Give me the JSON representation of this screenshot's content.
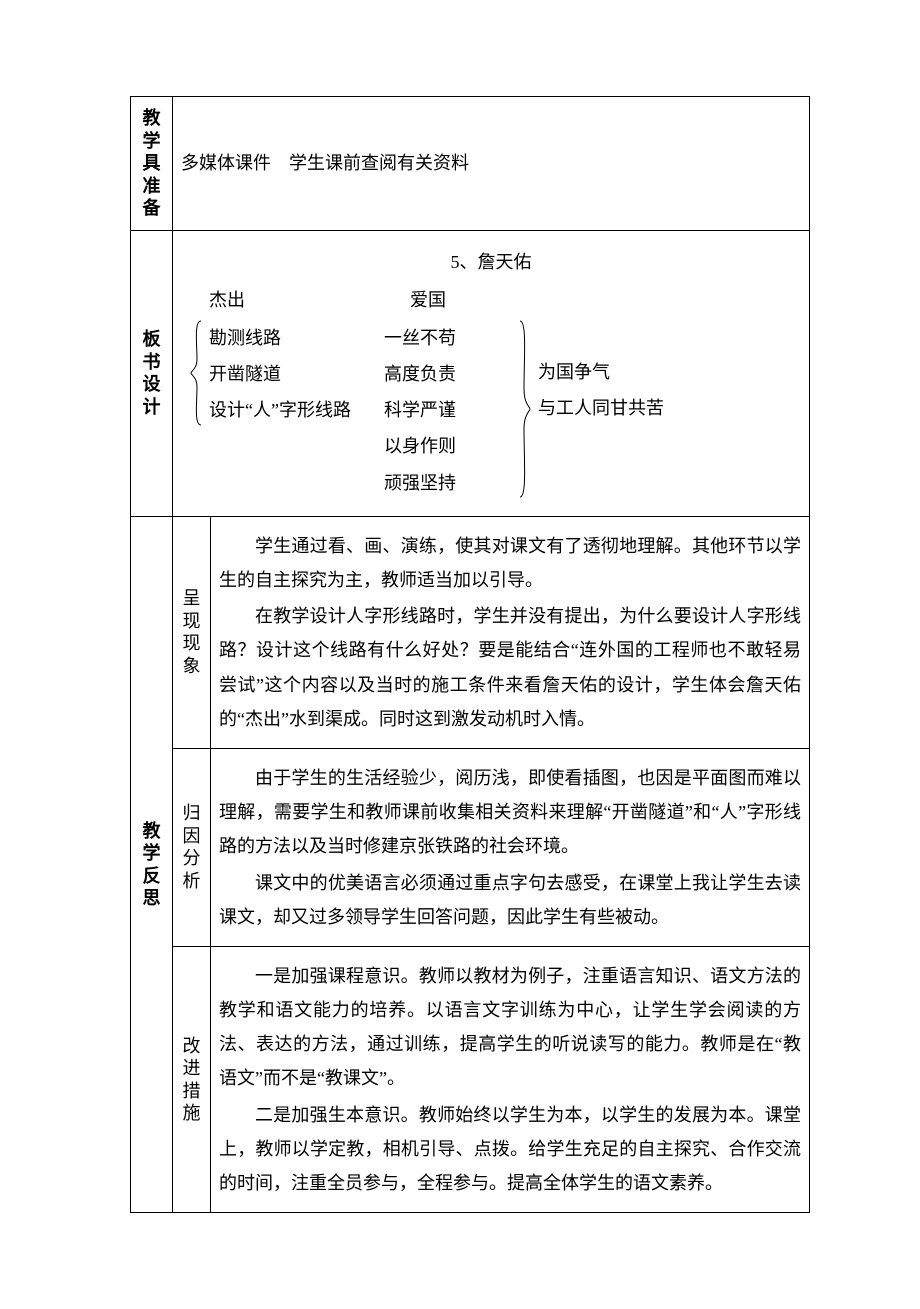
{
  "colors": {
    "border": "#000000",
    "text": "#000000",
    "bg": "#ffffff"
  },
  "font": {
    "family": "SimSun",
    "size_pt": 14,
    "line_height": 1.9
  },
  "row1": {
    "label": "教学具准备",
    "content": "多媒体课件　学生课前查阅有关资料"
  },
  "board": {
    "label": "板书设计",
    "title": "5、詹天佑",
    "head_left": "杰出",
    "head_right": "爱国",
    "col_a": [
      "勘测线路",
      "开凿隧道",
      "设计“人”字形线路"
    ],
    "col_b": [
      "一丝不苟",
      "高度负责",
      "科学严谨",
      "以身作则",
      "顽强坚持"
    ],
    "col_c": [
      "为国争气",
      "与工人同甘共苦"
    ]
  },
  "reflect": {
    "label": "教学反思",
    "sections": [
      {
        "sub": "呈现现象",
        "paras": [
          "学生通过看、画、演练，使其对课文有了透彻地理解。其他环节以学生的自主探究为主，教师适当加以引导。",
          "在教学设计人字形线路时，学生并没有提出，为什么要设计人字形线路？设计这个线路有什么好处？要是能结合“连外国的工程师也不敢轻易尝试”这个内容以及当时的施工条件来看詹天佑的设计，学生体会詹天佑的“杰出”水到渠成。同时这到激发动机时入情。"
        ]
      },
      {
        "sub": "归因分析",
        "paras": [
          "由于学生的生活经验少，阅历浅，即使看插图，也因是平面图而难以理解，需要学生和教师课前收集相关资料来理解“开凿隧道”和“人”字形线路的方法以及当时修建京张铁路的社会环境。",
          "课文中的优美语言必须通过重点字句去感受，在课堂上我让学生去读课文，却又过多领导学生回答问题，因此学生有些被动。"
        ]
      },
      {
        "sub": "改进措施",
        "paras": [
          "一是加强课程意识。教师以教材为例子，注重语言知识、语文方法的教学和语文能力的培养。以语言文字训练为中心，让学生学会阅读的方法、表达的方法，通过训练，提高学生的听说读写的能力。教师是在“教语文”而不是“教课文”。",
          "二是加强生本意识。教师始终以学生为本，以学生的发展为本。课堂上，教师以学定教，相机引导、点拨。给学生充足的自主探究、合作交流的时间，注重全员参与，全程参与。提高全体学生的语文素养。"
        ]
      }
    ]
  }
}
